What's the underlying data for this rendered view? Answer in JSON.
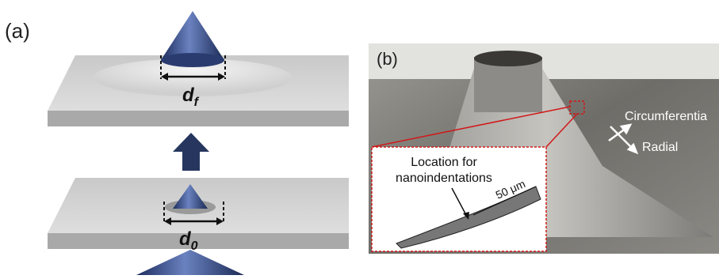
{
  "panel_a": {
    "label": "(a)",
    "top_dimension": {
      "main": "d",
      "sub": "f"
    },
    "bottom_dimension": {
      "main": "d",
      "sub": "0"
    }
  },
  "panel_b": {
    "label": "(b)",
    "direction_1": "Circumferentia",
    "direction_2": "Radial",
    "inset_note": [
      "Location for",
      "nanoindentations"
    ],
    "scale": "50 μm"
  }
}
